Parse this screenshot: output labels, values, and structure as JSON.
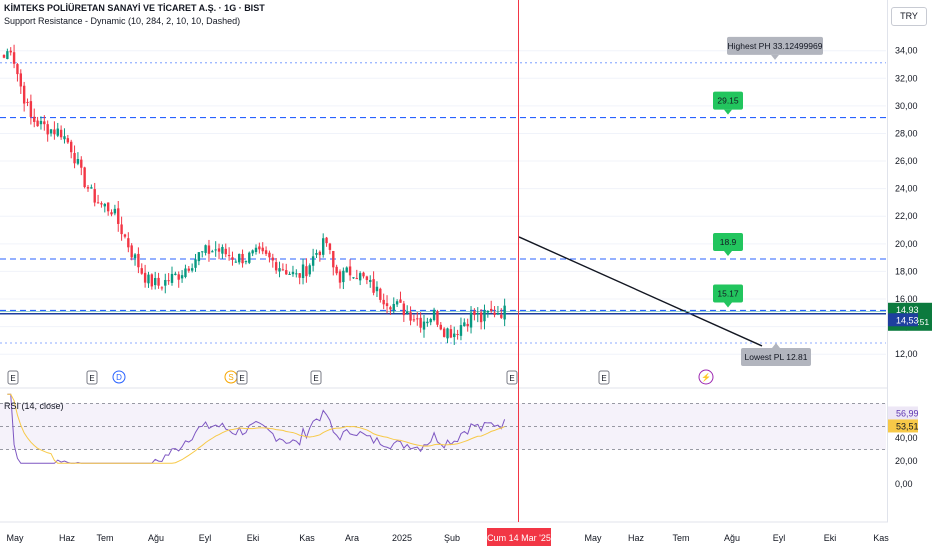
{
  "header": {
    "title": "KİMTEKS POLİÜRETAN SANAYİ VE TİCARET A.Ş. · 1G · BIST",
    "indicator": "Support Resistance - Dynamic (10, 284, 2, 10, 10, Dashed)",
    "currency": "TRY"
  },
  "rsi": {
    "label": "RSI (14, close)",
    "value_label": "56,99",
    "ma_label": "53,51"
  },
  "colors": {
    "up": "#089981",
    "down": "#f23645",
    "level": "#2962ff",
    "rsi": "#7e57c2",
    "rsi_ma": "#f7c948",
    "marker": "#f23645",
    "support_label": "#22c55e",
    "extreme_label": "#b2b5be"
  },
  "chart_data": [
    {
      "type": "candlestick",
      "title": "KİMTEKS POLİÜRETAN SANAYİ VE TİCARET A.Ş. · 1G · BIST",
      "x_tick_labels": [
        "May",
        "Haz",
        "Tem",
        "Ağu",
        "Eyl",
        "Eki",
        "Kas",
        "Ara",
        "2025",
        "Şub",
        "Cum 14 Mar '25",
        "May",
        "Haz",
        "Tem",
        "Ağu",
        "Eyl",
        "Eki",
        "Kas"
      ],
      "y_tick_labels": [
        "12,00",
        "14,00",
        "16,00",
        "18,00",
        "20,00",
        "22,00",
        "24,00",
        "26,00",
        "28,00",
        "30,00",
        "32,00",
        "34,00"
      ],
      "ylim": [
        11,
        35.5
      ],
      "close_path": [
        [
          0,
          33.5
        ],
        [
          2,
          34.3
        ],
        [
          5,
          31.4
        ],
        [
          8,
          29.1
        ],
        [
          11,
          28.6
        ],
        [
          14,
          28.3
        ],
        [
          17,
          28.1
        ],
        [
          20,
          27.0
        ],
        [
          23,
          25.0
        ],
        [
          26,
          23.6
        ],
        [
          29,
          22.8
        ],
        [
          32,
          22.5
        ],
        [
          35,
          21.0
        ],
        [
          38,
          19.4
        ],
        [
          41,
          18.0
        ],
        [
          43,
          17.3
        ],
        [
          46,
          17.0
        ],
        [
          49,
          17.4
        ],
        [
          52,
          17.8
        ],
        [
          55,
          18.5
        ],
        [
          58,
          19.2
        ],
        [
          60,
          19.4
        ],
        [
          63,
          19.6
        ],
        [
          66,
          19.3
        ],
        [
          69,
          19.0
        ],
        [
          72,
          19.0
        ],
        [
          75,
          19.2
        ],
        [
          78,
          19.0
        ],
        [
          81,
          18.6
        ],
        [
          84,
          18.1
        ],
        [
          87,
          17.6
        ],
        [
          90,
          18.2
        ],
        [
          93,
          19.4
        ],
        [
          96,
          20.1
        ],
        [
          98,
          18.2
        ],
        [
          100,
          17.6
        ],
        [
          104,
          18.1
        ],
        [
          108,
          17.2
        ],
        [
          112,
          16.3
        ],
        [
          116,
          15.6
        ],
        [
          120,
          15.1
        ],
        [
          124,
          14.4
        ],
        [
          128,
          14.9
        ],
        [
          131,
          13.8
        ],
        [
          134,
          13.6
        ],
        [
          137,
          14.4
        ],
        [
          140,
          14.9
        ],
        [
          142,
          14.5
        ],
        [
          144,
          14.9
        ],
        [
          146,
          15.1
        ]
      ],
      "levels": [
        {
          "label": "Highest PH 33.12499969",
          "value": 33.12,
          "kind": "extreme"
        },
        {
          "label": "29.15",
          "value": 29.15,
          "kind": "support"
        },
        {
          "label": "18.9",
          "value": 18.9,
          "kind": "support"
        },
        {
          "label": "15.17",
          "value": 15.17,
          "kind": "support"
        },
        {
          "label": "Lowest PL 12.81",
          "value": 12.81,
          "kind": "extreme"
        }
      ],
      "last_price": {
        "value": 14.93,
        "label": "14,93",
        "countdown": "07:04:51"
      },
      "prev_close": {
        "value": 14.53,
        "label": "14,53"
      },
      "event_markers": [
        "E",
        "E",
        "D",
        "S",
        "E",
        "E",
        "E",
        "E",
        "⚡"
      ],
      "highlight_date": "Cum 14 Mar '25"
    },
    {
      "type": "line",
      "title": "RSI (14, close)",
      "ylim": [
        0,
        80
      ],
      "y_tick_labels": [
        "0,00",
        "20,00",
        "40,00",
        "60,00"
      ],
      "bands": [
        30,
        50,
        70
      ],
      "series": [
        {
          "name": "RSI",
          "last": 56.99
        },
        {
          "name": "MA",
          "last": 53.51
        }
      ]
    }
  ]
}
